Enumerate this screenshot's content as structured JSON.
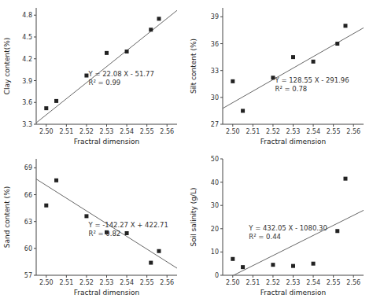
{
  "chart_data": [
    {
      "type": "scatter",
      "xlabel": "Fractral dimension",
      "ylabel": "Clay content(%)",
      "x": [
        2.5,
        2.505,
        2.52,
        2.53,
        2.54,
        2.552,
        2.556
      ],
      "values": [
        3.52,
        3.62,
        3.97,
        4.28,
        4.3,
        4.6,
        4.75
      ],
      "color": "#222222",
      "marker": "square",
      "xlim": [
        2.495,
        2.565
      ],
      "xticks": [
        {
          "value": 2.5,
          "label": "2.50"
        },
        2.51,
        2.52,
        2.53,
        2.54,
        2.55,
        2.56
      ],
      "ylim": [
        3.3,
        4.9
      ],
      "yticks": [
        3.3,
        3.6,
        3.9,
        4.2,
        4.5,
        4.8
      ],
      "fit": {
        "slope": 22.08,
        "intercept": -51.77,
        "color": "#666666"
      },
      "annotation": {
        "text": [
          "Y = 22.08 X - 51.77",
          "R² = 0.99"
        ],
        "x": 2.521,
        "y": 3.82
      }
    },
    {
      "type": "scatter",
      "xlabel": "Fractral dimension",
      "ylabel": "Silt content (%)",
      "x": [
        2.5,
        2.505,
        2.52,
        2.53,
        2.54,
        2.552,
        2.556
      ],
      "values": [
        31.8,
        28.5,
        32.2,
        34.5,
        34.0,
        36.0,
        38.0
      ],
      "color": "#222222",
      "marker": "square",
      "xlim": [
        2.495,
        2.565
      ],
      "xticks": [
        {
          "value": 2.5,
          "label": "2.50"
        },
        2.51,
        2.52,
        2.53,
        2.54,
        2.55,
        2.56
      ],
      "ylim": [
        27,
        40
      ],
      "yticks": [
        27,
        30,
        33,
        36,
        39
      ],
      "fit": {
        "slope": 128.55,
        "intercept": -291.96,
        "color": "#666666"
      },
      "annotation": {
        "text": [
          "Y = 128.55 X - 291.96",
          "R² = 0.78"
        ],
        "x": 2.521,
        "y": 30.5
      }
    },
    {
      "type": "scatter",
      "xlabel": "Fractral dimension",
      "ylabel": "Sand content (%)",
      "x": [
        2.5,
        2.505,
        2.52,
        2.53,
        2.54,
        2.552,
        2.556
      ],
      "values": [
        64.8,
        67.6,
        63.6,
        61.8,
        61.7,
        58.4,
        59.7
      ],
      "color": "#222222",
      "marker": "square",
      "xlim": [
        2.495,
        2.565
      ],
      "xticks": [
        {
          "value": 2.5,
          "label": "2.50"
        },
        2.51,
        2.52,
        2.53,
        2.54,
        2.55,
        2.56
      ],
      "ylim": [
        57,
        70
      ],
      "yticks": [
        57,
        60,
        63,
        66,
        69
      ],
      "fit": {
        "slope": -142.27,
        "intercept": 422.71,
        "color": "#666666"
      },
      "annotation": {
        "text": [
          "Y = -142.27 X + 422.71",
          "R² = 0.82"
        ],
        "x": 2.521,
        "y": 61.2
      }
    },
    {
      "type": "scatter",
      "xlabel": "Fractral dimension",
      "ylabel": "Soil salinity (g/L)",
      "x": [
        2.5,
        2.505,
        2.52,
        2.53,
        2.54,
        2.552,
        2.556
      ],
      "values": [
        7.0,
        3.5,
        4.5,
        4.0,
        5.0,
        19.0,
        41.5
      ],
      "color": "#222222",
      "marker": "square",
      "xlim": [
        2.495,
        2.565
      ],
      "xticks": [
        {
          "value": 2.5,
          "label": "2.50"
        },
        2.51,
        2.52,
        2.53,
        2.54,
        2.55,
        2.56
      ],
      "ylim": [
        0,
        50
      ],
      "yticks": [
        0,
        10,
        20,
        30,
        40,
        50
      ],
      "fit": {
        "slope": 432.05,
        "intercept": -1080.3,
        "color": "#666666"
      },
      "annotation": {
        "text": [
          "Y = 432.05 X - 1080.30",
          "R² = 0.44"
        ],
        "x": 2.508,
        "y": 15.0
      }
    }
  ]
}
